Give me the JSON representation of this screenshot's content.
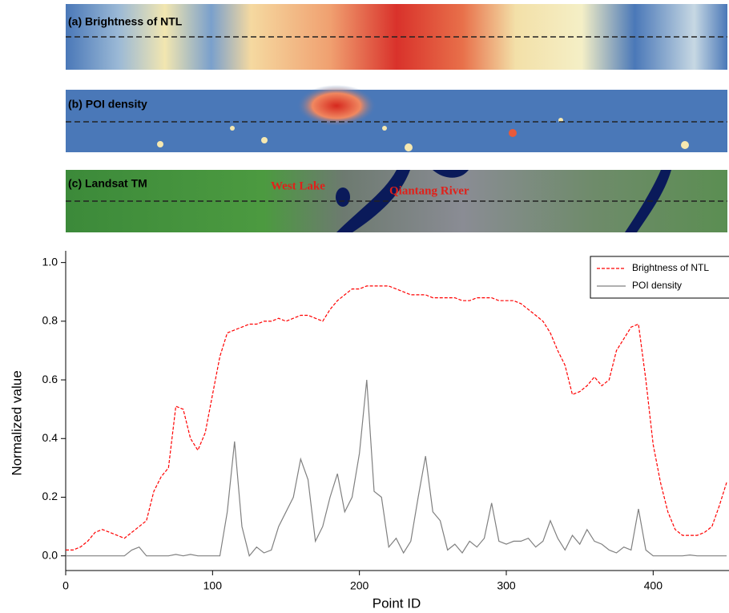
{
  "panels": [
    {
      "label": "(a) Brightness of NTL"
    },
    {
      "label": "(b) POI density"
    },
    {
      "label": "(c) Landsat TM"
    }
  ],
  "annotations": [
    "West Lake",
    "Qiantang River"
  ],
  "chart_data": {
    "type": "line",
    "xlabel": "Point ID",
    "ylabel": "Normalized value",
    "x": [
      0,
      5,
      10,
      15,
      20,
      25,
      30,
      35,
      40,
      45,
      50,
      55,
      60,
      65,
      70,
      75,
      80,
      85,
      90,
      95,
      100,
      105,
      110,
      115,
      120,
      125,
      130,
      135,
      140,
      145,
      150,
      155,
      160,
      165,
      170,
      175,
      180,
      185,
      190,
      195,
      200,
      205,
      210,
      215,
      220,
      225,
      230,
      235,
      240,
      245,
      250,
      255,
      260,
      265,
      270,
      275,
      280,
      285,
      290,
      295,
      300,
      305,
      310,
      315,
      320,
      325,
      330,
      335,
      340,
      345,
      350,
      355,
      360,
      365,
      370,
      375,
      380,
      385,
      390,
      395,
      400,
      405,
      410,
      415,
      420,
      425,
      430,
      435,
      440,
      445,
      450
    ],
    "series": [
      {
        "name": "Brightness of NTL",
        "color": "#ff0000",
        "dash": true,
        "values": [
          0.02,
          0.02,
          0.03,
          0.05,
          0.08,
          0.09,
          0.08,
          0.07,
          0.06,
          0.08,
          0.1,
          0.12,
          0.22,
          0.27,
          0.3,
          0.51,
          0.5,
          0.4,
          0.36,
          0.42,
          0.55,
          0.68,
          0.76,
          0.77,
          0.78,
          0.79,
          0.79,
          0.8,
          0.8,
          0.81,
          0.8,
          0.81,
          0.82,
          0.82,
          0.81,
          0.8,
          0.84,
          0.87,
          0.89,
          0.91,
          0.91,
          0.92,
          0.92,
          0.92,
          0.92,
          0.91,
          0.9,
          0.89,
          0.89,
          0.89,
          0.88,
          0.88,
          0.88,
          0.88,
          0.87,
          0.87,
          0.88,
          0.88,
          0.88,
          0.87,
          0.87,
          0.87,
          0.86,
          0.84,
          0.82,
          0.8,
          0.76,
          0.7,
          0.65,
          0.55,
          0.56,
          0.58,
          0.61,
          0.58,
          0.6,
          0.7,
          0.74,
          0.78,
          0.79,
          0.6,
          0.38,
          0.25,
          0.15,
          0.09,
          0.07,
          0.07,
          0.07,
          0.08,
          0.1,
          0.17,
          0.25
        ]
      },
      {
        "name": "POI density",
        "color": "#808080",
        "dash": false,
        "values": [
          0,
          0,
          0,
          0,
          0,
          0,
          0,
          0,
          0,
          0.02,
          0.03,
          0,
          0,
          0,
          0,
          0.005,
          0,
          0.005,
          0,
          0,
          0,
          0,
          0.15,
          0.39,
          0.1,
          0,
          0.03,
          0.01,
          0.02,
          0.1,
          0.15,
          0.2,
          0.33,
          0.26,
          0.05,
          0.1,
          0.2,
          0.28,
          0.15,
          0.2,
          0.35,
          0.6,
          0.22,
          0.2,
          0.03,
          0.06,
          0.01,
          0.05,
          0.2,
          0.34,
          0.15,
          0.12,
          0.02,
          0.04,
          0.01,
          0.05,
          0.03,
          0.06,
          0.18,
          0.05,
          0.04,
          0.05,
          0.05,
          0.06,
          0.03,
          0.05,
          0.12,
          0.06,
          0.02,
          0.07,
          0.04,
          0.09,
          0.05,
          0.04,
          0.02,
          0.01,
          0.03,
          0.02,
          0.16,
          0.02,
          0,
          0,
          0,
          0,
          0,
          0.003,
          0,
          0,
          0,
          0,
          0
        ]
      }
    ],
    "xlim": [
      0,
      450
    ],
    "ylim": [
      -0.05,
      1.04
    ],
    "xticks": [
      0,
      100,
      200,
      300,
      400
    ],
    "yticks": [
      {
        "value": 0,
        "label": "0.0"
      },
      {
        "value": 0.2,
        "label": "0.2"
      },
      {
        "value": 0.4,
        "label": "0.4"
      },
      {
        "value": 0.6,
        "label": "0.6"
      },
      {
        "value": 0.8,
        "label": "0.8"
      },
      {
        "value": 1,
        "label": "1.0"
      }
    ],
    "legend": "upper right"
  }
}
